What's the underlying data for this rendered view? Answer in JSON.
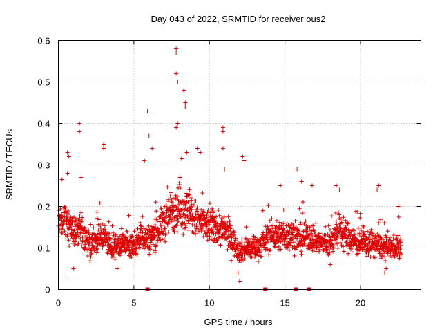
{
  "chart_data": {
    "type": "scatter",
    "title": "Day 043 of 2022, SRMTID for receiver ous2",
    "xlabel": "GPS time / hours",
    "ylabel": "SRMTID / TECUs",
    "xlim": [
      0,
      24
    ],
    "ylim": [
      0,
      0.6
    ],
    "xticks": [
      0,
      5,
      10,
      15,
      20
    ],
    "xtick_labels": [
      "0",
      "5",
      "10",
      "15",
      "20"
    ],
    "yticks": [
      0,
      0.1,
      0.2,
      0.3,
      0.4,
      0.5,
      0.6
    ],
    "ytick_labels": [
      "0",
      "0.1",
      "0.2",
      "0.3",
      "0.4",
      "0.5",
      "0.6"
    ],
    "grid": true,
    "marker": "plus",
    "color": "#e00000",
    "series": [
      {
        "name": "SRMTID",
        "baseline": [
          [
            0.0,
            0.16
          ],
          [
            0.5,
            0.17
          ],
          [
            1.0,
            0.13
          ],
          [
            1.5,
            0.15
          ],
          [
            2.0,
            0.11
          ],
          [
            2.5,
            0.12
          ],
          [
            3.0,
            0.13
          ],
          [
            3.5,
            0.1
          ],
          [
            4.0,
            0.11
          ],
          [
            4.5,
            0.11
          ],
          [
            5.0,
            0.1
          ],
          [
            5.5,
            0.13
          ],
          [
            6.0,
            0.12
          ],
          [
            6.5,
            0.14
          ],
          [
            7.0,
            0.16
          ],
          [
            7.5,
            0.19
          ],
          [
            8.0,
            0.2
          ],
          [
            8.5,
            0.19
          ],
          [
            9.0,
            0.17
          ],
          [
            9.5,
            0.16
          ],
          [
            10.0,
            0.15
          ],
          [
            10.5,
            0.15
          ],
          [
            11.0,
            0.14
          ],
          [
            11.5,
            0.12
          ],
          [
            12.0,
            0.09
          ],
          [
            12.5,
            0.1
          ],
          [
            13.0,
            0.1
          ],
          [
            13.5,
            0.11
          ],
          [
            14.0,
            0.13
          ],
          [
            14.5,
            0.13
          ],
          [
            15.0,
            0.13
          ],
          [
            15.5,
            0.13
          ],
          [
            16.0,
            0.12
          ],
          [
            16.5,
            0.13
          ],
          [
            17.0,
            0.12
          ],
          [
            17.5,
            0.11
          ],
          [
            18.0,
            0.11
          ],
          [
            18.5,
            0.14
          ],
          [
            19.0,
            0.13
          ],
          [
            19.5,
            0.12
          ],
          [
            20.0,
            0.11
          ],
          [
            20.5,
            0.11
          ],
          [
            21.0,
            0.11
          ],
          [
            21.5,
            0.1
          ],
          [
            22.0,
            0.1
          ],
          [
            22.5,
            0.1
          ],
          [
            22.7,
            0.1
          ]
        ],
        "outliers": [
          [
            7.8,
            0.58
          ],
          [
            7.8,
            0.57
          ],
          [
            7.8,
            0.52
          ],
          [
            7.9,
            0.5
          ],
          [
            8.3,
            0.48
          ],
          [
            8.4,
            0.45
          ],
          [
            8.4,
            0.44
          ],
          [
            5.9,
            0.43
          ],
          [
            1.4,
            0.4
          ],
          [
            1.4,
            0.38
          ],
          [
            7.9,
            0.4
          ],
          [
            7.8,
            0.39
          ],
          [
            6.0,
            0.37
          ],
          [
            10.9,
            0.39
          ],
          [
            10.9,
            0.38
          ],
          [
            3.0,
            0.35
          ],
          [
            3.0,
            0.34
          ],
          [
            0.6,
            0.33
          ],
          [
            0.7,
            0.32
          ],
          [
            10.9,
            0.34
          ],
          [
            12.2,
            0.32
          ],
          [
            12.3,
            0.31
          ],
          [
            15.8,
            0.29
          ],
          [
            5.7,
            0.31
          ],
          [
            8.5,
            0.33
          ],
          [
            9.2,
            0.34
          ],
          [
            9.4,
            0.33
          ],
          [
            11.0,
            0.29
          ],
          [
            0.6,
            0.28
          ],
          [
            1.5,
            0.27
          ],
          [
            6.2,
            0.34
          ],
          [
            16.1,
            0.26
          ],
          [
            16.8,
            0.25
          ],
          [
            18.4,
            0.25
          ],
          [
            18.6,
            0.24
          ],
          [
            21.1,
            0.24
          ],
          [
            21.2,
            0.25
          ],
          [
            14.7,
            0.25
          ],
          [
            22.5,
            0.2
          ],
          [
            0.5,
            0.03
          ],
          [
            12.0,
            0.02
          ],
          [
            11.9,
            0.04
          ],
          [
            21.6,
            0.04
          ],
          [
            21.7,
            0.05
          ],
          [
            1.0,
            0.05
          ],
          [
            3.9,
            0.05
          ],
          [
            18.0,
            0.06
          ]
        ]
      }
    ],
    "gap_markers_x": [
      5.9,
      13.7,
      15.7,
      16.6
    ]
  }
}
